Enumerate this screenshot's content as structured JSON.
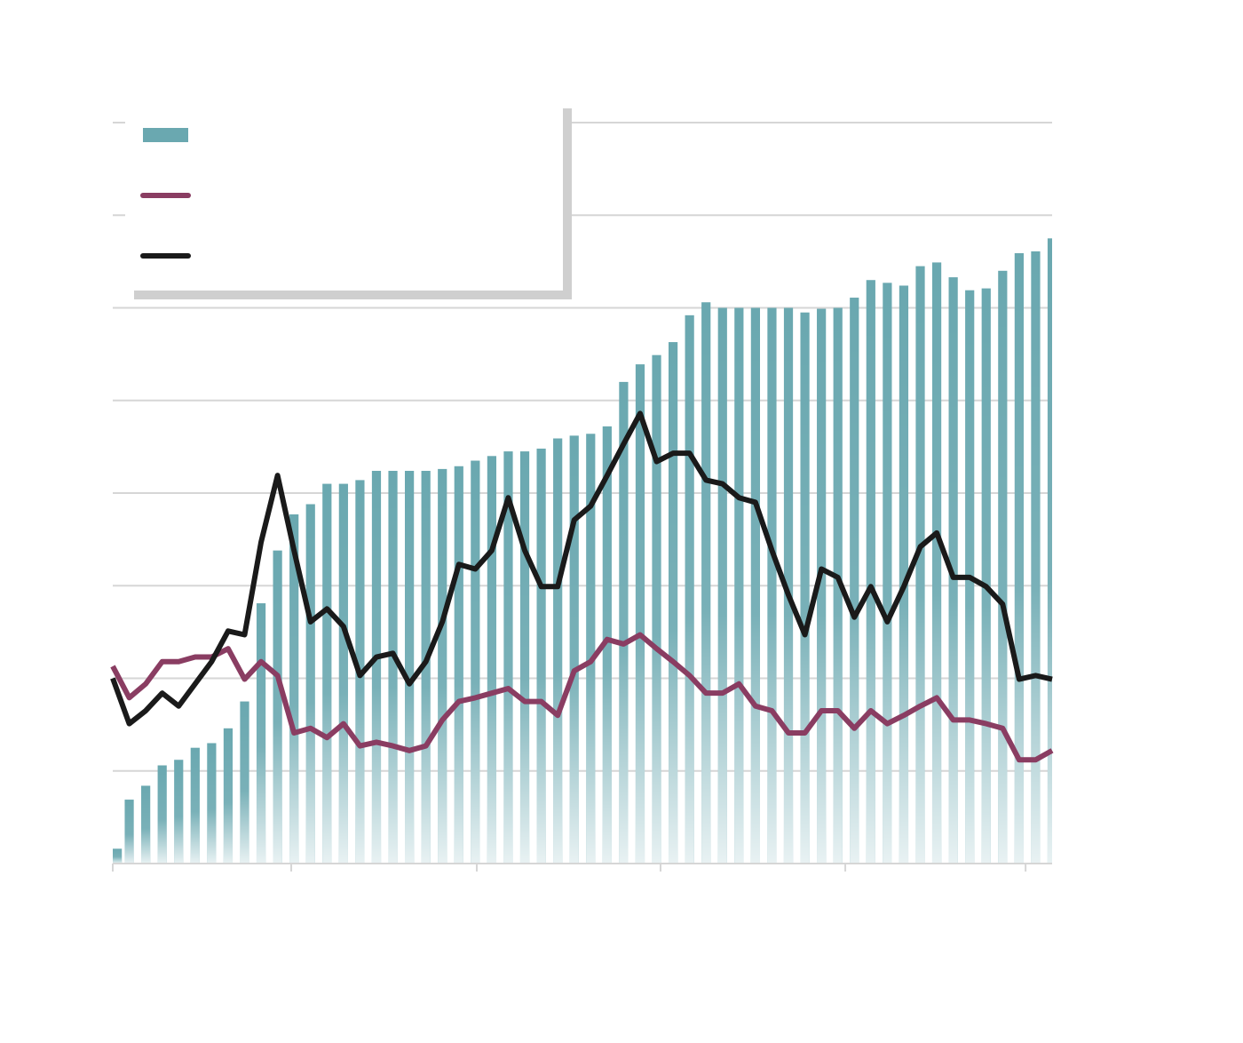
{
  "chart_data": {
    "type": "combo",
    "x": [
      0,
      1,
      2,
      3,
      4,
      5,
      6,
      7,
      8,
      9,
      10,
      11,
      12,
      13,
      14,
      15,
      16,
      17,
      18,
      19,
      20,
      21,
      22,
      23,
      24,
      25,
      26,
      27,
      28,
      29,
      30,
      31,
      32,
      33,
      34,
      35,
      36,
      37,
      38,
      39,
      40,
      41,
      42,
      43,
      44,
      45,
      46,
      47,
      48,
      49,
      50,
      51,
      52,
      53,
      54,
      55,
      56,
      57
    ],
    "xlim": [
      0,
      57
    ],
    "xticks": [
      0,
      10.83,
      22.09,
      33.24,
      44.45,
      55.39
    ],
    "ylim": [
      0,
      8
    ],
    "yticks": [
      0,
      1,
      2,
      3,
      4,
      5,
      6,
      7,
      8
    ],
    "grid": true,
    "legend": "upper left",
    "series": [
      {
        "type": "bar",
        "color": "#6aa8b0",
        "values": [
          0.16,
          0.69,
          0.84,
          1.06,
          1.12,
          1.25,
          1.3,
          1.46,
          1.75,
          2.81,
          3.38,
          3.77,
          3.88,
          4.1,
          4.1,
          4.14,
          4.24,
          4.24,
          4.24,
          4.24,
          4.26,
          4.29,
          4.35,
          4.4,
          4.45,
          4.45,
          4.48,
          4.59,
          4.62,
          4.64,
          4.72,
          5.2,
          5.39,
          5.49,
          5.63,
          5.92,
          6.06,
          6.0,
          6.0,
          6.0,
          6.0,
          6.0,
          5.95,
          5.99,
          6.0,
          6.11,
          6.3,
          6.27,
          6.24,
          6.45,
          6.49,
          6.33,
          6.19,
          6.21,
          6.4,
          6.59,
          6.61,
          6.75
        ]
      },
      {
        "type": "line",
        "color": "#8a3d62",
        "values": [
          2.13,
          1.79,
          1.94,
          2.18,
          2.18,
          2.23,
          2.23,
          2.32,
          1.99,
          2.18,
          2.03,
          1.41,
          1.46,
          1.36,
          1.51,
          1.27,
          1.31,
          1.27,
          1.22,
          1.27,
          1.55,
          1.75,
          1.79,
          1.84,
          1.89,
          1.75,
          1.75,
          1.6,
          2.08,
          2.18,
          2.42,
          2.37,
          2.47,
          2.32,
          2.18,
          2.03,
          1.84,
          1.84,
          1.94,
          1.7,
          1.65,
          1.41,
          1.41,
          1.65,
          1.65,
          1.46,
          1.65,
          1.51,
          1.6,
          1.7,
          1.79,
          1.55,
          1.55,
          1.51,
          1.46,
          1.12,
          1.12,
          1.22
        ]
      },
      {
        "type": "line",
        "color": "#1a1a1a",
        "values": [
          2.0,
          1.51,
          1.65,
          1.84,
          1.7,
          1.94,
          2.18,
          2.51,
          2.47,
          3.47,
          4.19,
          3.38,
          2.61,
          2.75,
          2.56,
          2.03,
          2.23,
          2.27,
          1.94,
          2.18,
          2.61,
          3.23,
          3.18,
          3.38,
          3.95,
          3.38,
          2.99,
          2.99,
          3.71,
          3.86,
          4.19,
          4.53,
          4.86,
          4.34,
          4.43,
          4.43,
          4.14,
          4.1,
          3.95,
          3.9,
          3.38,
          2.9,
          2.47,
          3.18,
          3.09,
          2.66,
          2.99,
          2.61,
          2.99,
          3.42,
          3.57,
          3.09,
          3.09,
          2.99,
          2.8,
          1.99,
          2.03,
          1.99
        ]
      }
    ]
  }
}
